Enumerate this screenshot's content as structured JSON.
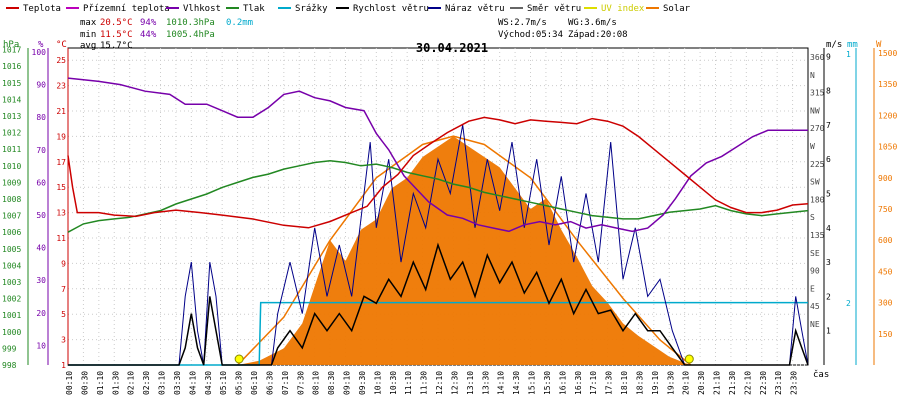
{
  "chart_data": {
    "type": "line",
    "title": "30.04.2021",
    "legend": [
      {
        "name": "Teplota",
        "color": "#cc0000"
      },
      {
        "name": "Přízemní teplota",
        "color": "#bb00bb"
      },
      {
        "name": "Vlhkost",
        "color": "#7700aa"
      },
      {
        "name": "Tlak",
        "color": "#228822"
      },
      {
        "name": "Srážky",
        "color": "#00aacc"
      },
      {
        "name": "Rychlost větru",
        "color": "#000000"
      },
      {
        "name": "Náraz větru",
        "color": "#000088"
      },
      {
        "name": "Směr větru",
        "color": "#666666"
      },
      {
        "name": "UV index",
        "color": "#dddd00"
      },
      {
        "name": "Solar",
        "color": "#ee7700"
      }
    ],
    "stats": {
      "max": {
        "label": "max",
        "temp": "20.5°C",
        "hum": "94%",
        "press": "1010.3hPa",
        "rain": "0.2mm"
      },
      "min": {
        "label": "min",
        "temp": "11.5°C",
        "hum": "44%",
        "press": "1005.4hPa"
      },
      "avg": {
        "label": "avg",
        "temp": "15.7°C"
      }
    },
    "wind_info": {
      "ws": "WS:2.7m/s",
      "wg": "WG:3.6m/s",
      "sunrise": "Východ:05:34",
      "sunset": "Západ:20:08"
    },
    "axes_units": {
      "press": "hPa",
      "hum": "%",
      "temp": "°C",
      "wind": "m/s",
      "rain": "mm",
      "solar": "W",
      "time": "čas"
    },
    "press_ticks": [
      "1017",
      "1016",
      "1015",
      "1014",
      "1013",
      "1012",
      "1011",
      "1010",
      "1009",
      "1008",
      "1007",
      "1006",
      "1005",
      "1004",
      "1003",
      "1002",
      "1001",
      "1000",
      "999",
      "998"
    ],
    "hum_ticks": [
      "100",
      "90",
      "80",
      "70",
      "60",
      "50",
      "40",
      "30",
      "20",
      "10"
    ],
    "temp_ticks": [
      "25",
      "23",
      "21",
      "19",
      "17",
      "15",
      "13",
      "11",
      "9",
      "7",
      "5",
      "3",
      "1"
    ],
    "wind_ticks": [
      "9",
      "8",
      "7",
      "6",
      "5",
      "4",
      "3",
      "2",
      "1"
    ],
    "dir_ticks": [
      "360",
      "N",
      "315",
      "NW",
      "270",
      "W",
      "225",
      "SW",
      "180",
      "S",
      "135",
      "SE",
      "90",
      "E",
      "45",
      "NE"
    ],
    "rain_ticks": [
      "1",
      "2"
    ],
    "solar_ticks": [
      "1500",
      "1350",
      "1200",
      "1050",
      "900",
      "750",
      "600",
      "450",
      "300",
      "150"
    ],
    "x_ticks": [
      "00:10",
      "00:30",
      "01:10",
      "01:30",
      "02:10",
      "02:30",
      "03:10",
      "03:30",
      "04:10",
      "04:30",
      "05:10",
      "05:30",
      "06:10",
      "06:30",
      "07:10",
      "07:30",
      "08:10",
      "08:30",
      "09:10",
      "09:30",
      "10:10",
      "10:30",
      "11:10",
      "11:30",
      "12:10",
      "12:30",
      "13:10",
      "13:30",
      "14:10",
      "14:30",
      "15:10",
      "15:30",
      "16:10",
      "16:30",
      "17:10",
      "17:30",
      "18:10",
      "18:30",
      "19:10",
      "19:30",
      "20:10",
      "20:30",
      "21:10",
      "21:30",
      "22:10",
      "22:30",
      "23:10",
      "23:30"
    ],
    "temp_ylim": [
      1,
      25.9
    ],
    "x_range_hours": [
      0,
      24
    ],
    "series_temp": [
      [
        0,
        17.5
      ],
      [
        0.15,
        15
      ],
      [
        0.3,
        13
      ],
      [
        1,
        13
      ],
      [
        1.5,
        12.8
      ],
      [
        2.2,
        12.7
      ],
      [
        2.8,
        13
      ],
      [
        3.5,
        13.2
      ],
      [
        4.3,
        13
      ],
      [
        5,
        12.8
      ],
      [
        6,
        12.5
      ],
      [
        7,
        12
      ],
      [
        7.8,
        11.8
      ],
      [
        8.5,
        12.3
      ],
      [
        9.2,
        13
      ],
      [
        9.7,
        13.5
      ],
      [
        10.2,
        15
      ],
      [
        10.7,
        16
      ],
      [
        11.2,
        17.5
      ],
      [
        11.8,
        18.5
      ],
      [
        12.3,
        19.3
      ],
      [
        13,
        20.2
      ],
      [
        13.5,
        20.5
      ],
      [
        14,
        20.3
      ],
      [
        14.5,
        20
      ],
      [
        15,
        20.3
      ],
      [
        15.5,
        20.2
      ],
      [
        16,
        20.1
      ],
      [
        16.5,
        20
      ],
      [
        17,
        20.4
      ],
      [
        17.5,
        20.2
      ],
      [
        18,
        19.8
      ],
      [
        18.5,
        19
      ],
      [
        19,
        18
      ],
      [
        19.5,
        17
      ],
      [
        20,
        16
      ],
      [
        20.5,
        15
      ],
      [
        21,
        14
      ],
      [
        21.5,
        13.4
      ],
      [
        22,
        13
      ],
      [
        22.5,
        13
      ],
      [
        23,
        13.2
      ],
      [
        23.5,
        13.6
      ],
      [
        24,
        13.7
      ]
    ],
    "series_hum": [
      [
        0,
        92
      ],
      [
        1,
        91
      ],
      [
        1.7,
        90
      ],
      [
        2.5,
        88
      ],
      [
        3.3,
        87
      ],
      [
        3.8,
        84
      ],
      [
        4.5,
        84
      ],
      [
        5,
        82
      ],
      [
        5.5,
        80
      ],
      [
        6,
        80
      ],
      [
        6.5,
        83
      ],
      [
        7,
        87
      ],
      [
        7.5,
        88
      ],
      [
        8,
        86
      ],
      [
        8.5,
        85
      ],
      [
        9,
        83
      ],
      [
        9.6,
        82
      ],
      [
        10,
        75
      ],
      [
        10.4,
        70
      ],
      [
        10.9,
        62
      ],
      [
        11.3,
        58
      ],
      [
        11.7,
        54
      ],
      [
        12.3,
        50
      ],
      [
        12.8,
        49
      ],
      [
        13.3,
        47
      ],
      [
        13.8,
        46
      ],
      [
        14.3,
        45
      ],
      [
        14.8,
        47
      ],
      [
        15.3,
        48
      ],
      [
        15.8,
        47
      ],
      [
        16.3,
        48
      ],
      [
        16.8,
        46
      ],
      [
        17.3,
        47
      ],
      [
        17.8,
        46
      ],
      [
        18.3,
        45
      ],
      [
        18.8,
        46
      ],
      [
        19.3,
        50
      ],
      [
        19.7,
        55
      ],
      [
        20.2,
        62
      ],
      [
        20.7,
        66
      ],
      [
        21.2,
        68
      ],
      [
        21.7,
        71
      ],
      [
        22.2,
        74
      ],
      [
        22.7,
        76
      ],
      [
        23,
        76
      ],
      [
        24,
        76
      ]
    ],
    "series_press": [
      [
        0,
        1006
      ],
      [
        0.5,
        1006.5
      ],
      [
        1,
        1006.7
      ],
      [
        1.5,
        1006.8
      ],
      [
        2,
        1006.9
      ],
      [
        3,
        1007.3
      ],
      [
        3.5,
        1007.7
      ],
      [
        4,
        1008
      ],
      [
        4.5,
        1008.3
      ],
      [
        5,
        1008.7
      ],
      [
        5.5,
        1009
      ],
      [
        6,
        1009.3
      ],
      [
        6.5,
        1009.5
      ],
      [
        7,
        1009.8
      ],
      [
        7.5,
        1010
      ],
      [
        8,
        1010.2
      ],
      [
        8.5,
        1010.3
      ],
      [
        9,
        1010.2
      ],
      [
        9.5,
        1010
      ],
      [
        10,
        1010.1
      ],
      [
        10.5,
        1009.9
      ],
      [
        11,
        1009.6
      ],
      [
        11.5,
        1009.4
      ],
      [
        12,
        1009.2
      ],
      [
        12.5,
        1008.9
      ],
      [
        13,
        1008.7
      ],
      [
        13.5,
        1008.4
      ],
      [
        14,
        1008.2
      ],
      [
        14.5,
        1008
      ],
      [
        15,
        1007.8
      ],
      [
        15.5,
        1007.6
      ],
      [
        16,
        1007.4
      ],
      [
        16.5,
        1007.2
      ],
      [
        17,
        1007
      ],
      [
        17.5,
        1006.9
      ],
      [
        18,
        1006.8
      ],
      [
        18.5,
        1006.8
      ],
      [
        19,
        1007
      ],
      [
        19.5,
        1007.2
      ],
      [
        20,
        1007.3
      ],
      [
        20.5,
        1007.4
      ],
      [
        21,
        1007.6
      ],
      [
        21.5,
        1007.3
      ],
      [
        22,
        1007.1
      ],
      [
        22.5,
        1007
      ],
      [
        23,
        1007.1
      ],
      [
        24,
        1007.3
      ]
    ],
    "series_rain": [
      [
        0,
        0
      ],
      [
        6.2,
        0
      ],
      [
        6.25,
        0.2
      ],
      [
        24,
        0.2
      ]
    ],
    "series_solar": [
      [
        5.5,
        0
      ],
      [
        6.2,
        20
      ],
      [
        7,
        80
      ],
      [
        7.6,
        200
      ],
      [
        8,
        380
      ],
      [
        8.5,
        600
      ],
      [
        9,
        500
      ],
      [
        9.5,
        650
      ],
      [
        10,
        700
      ],
      [
        10.5,
        850
      ],
      [
        11,
        900
      ],
      [
        11.5,
        1000
      ],
      [
        12,
        1050
      ],
      [
        12.5,
        1100
      ],
      [
        13,
        1050
      ],
      [
        13.5,
        1000
      ],
      [
        14,
        950
      ],
      [
        14.5,
        850
      ],
      [
        15,
        750
      ],
      [
        15.5,
        800
      ],
      [
        16,
        650
      ],
      [
        16.5,
        520
      ],
      [
        17,
        380
      ],
      [
        17.5,
        300
      ],
      [
        18,
        200
      ],
      [
        18.5,
        140
      ],
      [
        19,
        90
      ],
      [
        19.5,
        40
      ],
      [
        20,
        10
      ],
      [
        20.2,
        0
      ]
    ],
    "series_solar_theory": [
      [
        5.5,
        0
      ],
      [
        7,
        230
      ],
      [
        8.5,
        600
      ],
      [
        10,
        900
      ],
      [
        11.5,
        1060
      ],
      [
        12.5,
        1100
      ],
      [
        13.5,
        1060
      ],
      [
        15,
        900
      ],
      [
        16.5,
        600
      ],
      [
        18,
        320
      ],
      [
        19.2,
        120
      ],
      [
        20.2,
        0
      ]
    ],
    "series_wind": [
      [
        0,
        0
      ],
      [
        3.6,
        0
      ],
      [
        3.8,
        0.5
      ],
      [
        4,
        1.5
      ],
      [
        4.2,
        0.5
      ],
      [
        4.4,
        0
      ],
      [
        4.6,
        2
      ],
      [
        4.8,
        1
      ],
      [
        5,
        0
      ],
      [
        6.6,
        0
      ],
      [
        6.8,
        0.5
      ],
      [
        7.2,
        1
      ],
      [
        7.6,
        0.5
      ],
      [
        8,
        1.5
      ],
      [
        8.4,
        1
      ],
      [
        8.8,
        1.5
      ],
      [
        9.2,
        1
      ],
      [
        9.6,
        2
      ],
      [
        10,
        1.8
      ],
      [
        10.4,
        2.5
      ],
      [
        10.8,
        2
      ],
      [
        11.2,
        3
      ],
      [
        11.6,
        2.2
      ],
      [
        12,
        3.5
      ],
      [
        12.4,
        2.5
      ],
      [
        12.8,
        3
      ],
      [
        13.2,
        2
      ],
      [
        13.6,
        3.2
      ],
      [
        14,
        2.4
      ],
      [
        14.4,
        3
      ],
      [
        14.8,
        2.1
      ],
      [
        15.2,
        2.7
      ],
      [
        15.6,
        1.8
      ],
      [
        16,
        2.5
      ],
      [
        16.4,
        1.5
      ],
      [
        16.8,
        2.2
      ],
      [
        17.2,
        1.5
      ],
      [
        17.6,
        1.6
      ],
      [
        18,
        1
      ],
      [
        18.4,
        1.5
      ],
      [
        18.8,
        1
      ],
      [
        19.2,
        1
      ],
      [
        19.6,
        0.5
      ],
      [
        20,
        0
      ],
      [
        23.4,
        0
      ],
      [
        23.6,
        1
      ],
      [
        23.8,
        0.5
      ],
      [
        24,
        0
      ]
    ],
    "series_gust": [
      [
        0,
        0
      ],
      [
        3.6,
        0
      ],
      [
        3.8,
        2
      ],
      [
        4,
        3
      ],
      [
        4.2,
        1
      ],
      [
        4.4,
        0
      ],
      [
        4.6,
        3
      ],
      [
        4.8,
        2
      ],
      [
        5,
        0
      ],
      [
        6.6,
        0
      ],
      [
        6.8,
        1.5
      ],
      [
        7.2,
        3
      ],
      [
        7.6,
        1.5
      ],
      [
        8,
        4
      ],
      [
        8.4,
        2
      ],
      [
        8.8,
        3.5
      ],
      [
        9.2,
        2
      ],
      [
        9.6,
        5
      ],
      [
        9.8,
        6.5
      ],
      [
        10,
        4
      ],
      [
        10.4,
        6
      ],
      [
        10.8,
        3
      ],
      [
        11.2,
        5
      ],
      [
        11.6,
        4
      ],
      [
        12,
        6
      ],
      [
        12.4,
        5
      ],
      [
        12.8,
        7
      ],
      [
        13.2,
        4
      ],
      [
        13.6,
        6
      ],
      [
        14,
        4.5
      ],
      [
        14.4,
        6.5
      ],
      [
        14.8,
        4
      ],
      [
        15.2,
        6
      ],
      [
        15.6,
        3.5
      ],
      [
        16,
        5.5
      ],
      [
        16.4,
        3
      ],
      [
        16.8,
        5
      ],
      [
        17.2,
        3
      ],
      [
        17.6,
        6.5
      ],
      [
        18,
        2.5
      ],
      [
        18.4,
        4
      ],
      [
        18.8,
        2
      ],
      [
        19.2,
        2.5
      ],
      [
        19.6,
        1
      ],
      [
        20,
        0
      ],
      [
        23.4,
        0
      ],
      [
        23.6,
        2
      ],
      [
        23.8,
        1
      ],
      [
        24,
        0
      ]
    ],
    "uv_points": [
      [
        5.55,
        1
      ],
      [
        20.15,
        1
      ]
    ]
  }
}
